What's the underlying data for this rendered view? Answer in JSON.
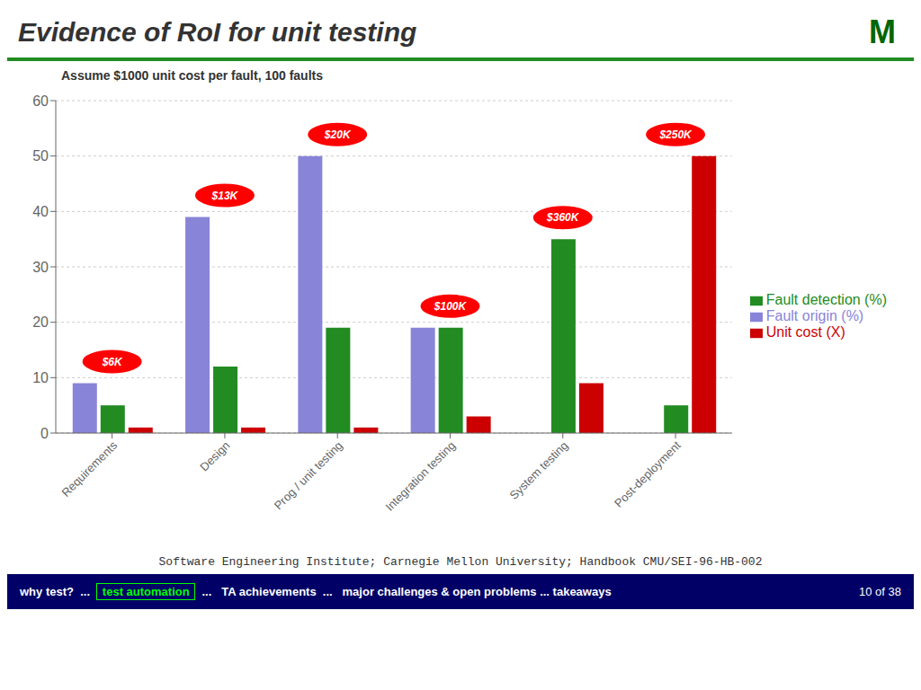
{
  "chart_data": {
    "type": "bar",
    "title": "Evidence of RoI for unit testing",
    "categories": [
      "Requirements",
      "Design",
      "Prog / unit testing",
      "Integration testing",
      "System testing",
      "Post-deployment"
    ],
    "series": [
      {
        "name": "Fault origin (%)",
        "color": "#8884d8",
        "values": [
          9,
          39,
          50,
          19,
          0,
          0
        ]
      },
      {
        "name": "Fault detection (%)",
        "color": "#228B22",
        "values": [
          5,
          12,
          19,
          19,
          35,
          5
        ]
      },
      {
        "name": "Unit cost (X)",
        "color": "#CC0000",
        "values": [
          1,
          1,
          1,
          3,
          9,
          50
        ]
      }
    ],
    "ylim": [
      0,
      60
    ],
    "yticks": [
      0,
      10,
      20,
      30,
      40,
      50,
      60
    ],
    "grid": true,
    "legend": "right",
    "annotations": [
      {
        "text": "Assume $1000 unit cost per fault, 100 faults"
      },
      {
        "text": "$6K",
        "category": "Requirements",
        "color": "#FF0000"
      },
      {
        "text": "$13K",
        "category": "Design",
        "color": "#FF0000"
      },
      {
        "text": "$20K",
        "category": "Prog / unit testing",
        "color": "#FF0000"
      },
      {
        "text": "$100K",
        "category": "Integration testing",
        "color": "#FF0000"
      },
      {
        "text": "$360K",
        "category": "System testing",
        "color": "#FF0000"
      },
      {
        "text": "$250K",
        "category": "Post-deployment",
        "color": "#FF0000"
      }
    ],
    "footer": "Software Engineering Institute; Carnegie Mellon University; Handbook CMU/SEI-96-HB-002",
    "navigation": [
      "why test?  ...  ",
      " test automation ",
      "  ...   TA achievements  ...   major challenges & open problems ... takeaways"
    ],
    "page_number": "10 of 38",
    "logo": "M"
  }
}
